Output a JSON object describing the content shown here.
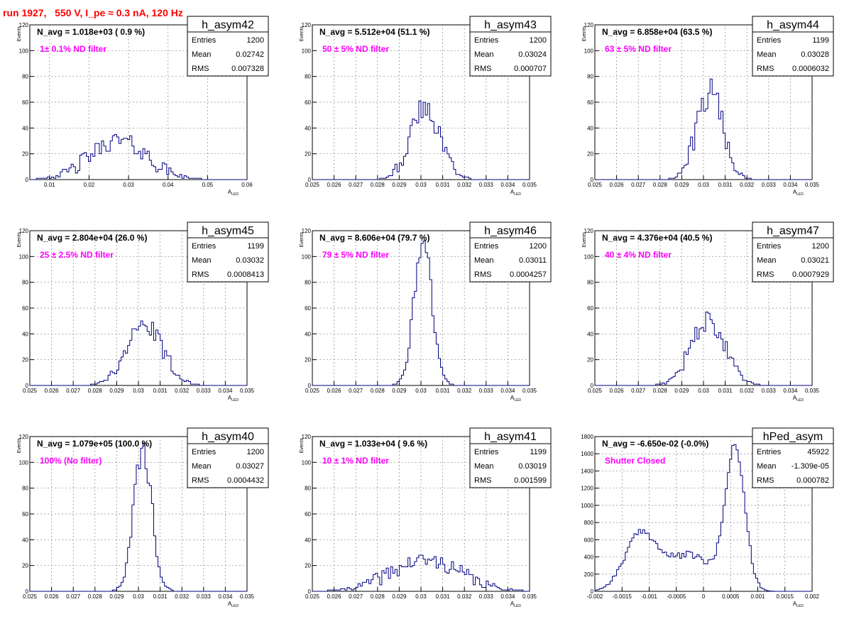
{
  "page_title": "run 1927,   550 V, I_pe ≈ 0.3 nA, 120 Hz",
  "colors": {
    "histogram": "#000080",
    "annotation": "#ff00ff",
    "title": "#ff0000",
    "grid": "#888888"
  },
  "chart_data": [
    {
      "type": "histogram",
      "name": "h_asym42",
      "navg_text": "N_avg = 1.018e+03 ( 0.9 %)",
      "filter_text": "1± 0.1% ND filter",
      "stats": [
        [
          "Entries",
          "1200"
        ],
        [
          "Mean",
          "0.02742"
        ],
        [
          "RMS",
          "0.007328"
        ]
      ],
      "xlabel": "A",
      "xlabel_sub": "LED",
      "ylabel": "Events",
      "xlim": [
        0.005,
        0.06
      ],
      "ylim": [
        0,
        120
      ],
      "xticks": [
        0.01,
        0.02,
        0.03,
        0.04,
        0.05,
        0.06
      ],
      "xticklabels": [
        "0.01",
        "0.02",
        "0.03",
        "0.04",
        "0.05",
        "0.06"
      ],
      "yticks": [
        0,
        20,
        40,
        60,
        80,
        100,
        120
      ],
      "yticklabels": [
        "0",
        "20",
        "40",
        "60",
        "80",
        "100",
        "120"
      ],
      "peaks": [
        [
          0.0274,
          0.0073,
          30
        ]
      ],
      "noise": 7,
      "seed": 42
    },
    {
      "type": "histogram",
      "name": "h_asym43",
      "navg_text": "N_avg = 5.512e+04 (51.1 %)",
      "filter_text": "50 ± 5% ND filter",
      "stats": [
        [
          "Entries",
          "1200"
        ],
        [
          "Mean",
          "0.03024"
        ],
        [
          "RMS",
          "0.000707"
        ]
      ],
      "xlabel": "A",
      "xlabel_sub": "LED",
      "ylabel": "Events",
      "xlim": [
        0.025,
        0.035
      ],
      "ylim": [
        0,
        120
      ],
      "xticks": [
        0.025,
        0.026,
        0.027,
        0.028,
        0.029,
        0.03,
        0.031,
        0.032,
        0.033,
        0.034,
        0.035
      ],
      "xticklabels": [
        "0.025",
        "0.026",
        "0.027",
        "0.028",
        "0.029",
        "0.03",
        "0.031",
        "0.032",
        "0.033",
        "0.034",
        "0.035"
      ],
      "yticks": [
        0,
        20,
        40,
        60,
        80,
        100,
        120
      ],
      "yticklabels": [
        "0",
        "20",
        "40",
        "60",
        "80",
        "100",
        "120"
      ],
      "peaks": [
        [
          0.0302,
          0.0007,
          55
        ]
      ],
      "noise": 10,
      "seed": 43
    },
    {
      "type": "histogram",
      "name": "h_asym44",
      "navg_text": "N_avg = 6.858e+04 (63.5 %)",
      "filter_text": "63 ± 5% ND filter",
      "stats": [
        [
          "Entries",
          "1199"
        ],
        [
          "Mean",
          "0.03028"
        ],
        [
          "RMS",
          "0.0006032"
        ]
      ],
      "xlabel": "A",
      "xlabel_sub": "LED",
      "ylabel": "Events",
      "xlim": [
        0.025,
        0.035
      ],
      "ylim": [
        0,
        120
      ],
      "xticks": [
        0.025,
        0.026,
        0.027,
        0.028,
        0.029,
        0.03,
        0.031,
        0.032,
        0.033,
        0.034,
        0.035
      ],
      "xticklabels": [
        "0.025",
        "0.026",
        "0.027",
        "0.028",
        "0.029",
        "0.03",
        "0.031",
        "0.032",
        "0.033",
        "0.034",
        "0.035"
      ],
      "yticks": [
        0,
        20,
        40,
        60,
        80,
        100,
        120
      ],
      "yticklabels": [
        "0",
        "20",
        "40",
        "60",
        "80",
        "100",
        "120"
      ],
      "peaks": [
        [
          0.0303,
          0.0006,
          68
        ]
      ],
      "noise": 11,
      "seed": 44
    },
    {
      "type": "histogram",
      "name": "h_asym45",
      "navg_text": "N_avg = 2.804e+04 (26.0 %)",
      "filter_text": "25 ± 2.5% ND filter",
      "stats": [
        [
          "Entries",
          "1199"
        ],
        [
          "Mean",
          "0.03032"
        ],
        [
          "RMS",
          "0.0008413"
        ]
      ],
      "xlabel": "A",
      "xlabel_sub": "LED",
      "ylabel": "Events",
      "xlim": [
        0.025,
        0.035
      ],
      "ylim": [
        0,
        120
      ],
      "xticks": [
        0.025,
        0.026,
        0.027,
        0.028,
        0.029,
        0.03,
        0.031,
        0.032,
        0.033,
        0.034,
        0.035
      ],
      "xticklabels": [
        "0.025",
        "0.026",
        "0.027",
        "0.028",
        "0.029",
        "0.03",
        "0.031",
        "0.032",
        "0.033",
        "0.034",
        "0.035"
      ],
      "yticks": [
        0,
        20,
        40,
        60,
        80,
        100,
        120
      ],
      "yticklabels": [
        "0",
        "20",
        "40",
        "60",
        "80",
        "100",
        "120"
      ],
      "peaks": [
        [
          0.0303,
          0.00084,
          46
        ]
      ],
      "noise": 7,
      "seed": 45
    },
    {
      "type": "histogram",
      "name": "h_asym46",
      "navg_text": "N_avg = 8.606e+04 (79.7 %)",
      "filter_text": "79 ± 5% ND filter",
      "stats": [
        [
          "Entries",
          "1200"
        ],
        [
          "Mean",
          "0.03011"
        ],
        [
          "RMS",
          "0.0004257"
        ]
      ],
      "xlabel": "A",
      "xlabel_sub": "LED",
      "ylabel": "Events",
      "xlim": [
        0.025,
        0.035
      ],
      "ylim": [
        0,
        120
      ],
      "xticks": [
        0.025,
        0.026,
        0.027,
        0.028,
        0.029,
        0.03,
        0.031,
        0.032,
        0.033,
        0.034,
        0.035
      ],
      "xticklabels": [
        "0.025",
        "0.026",
        "0.027",
        "0.028",
        "0.029",
        "0.03",
        "0.031",
        "0.032",
        "0.033",
        "0.034",
        "0.035"
      ],
      "yticks": [
        0,
        20,
        40,
        60,
        80,
        100,
        120
      ],
      "yticklabels": [
        "0",
        "20",
        "40",
        "60",
        "80",
        "100",
        "120"
      ],
      "peaks": [
        [
          0.0301,
          0.00042,
          110
        ]
      ],
      "noise": 8,
      "seed": 46
    },
    {
      "type": "histogram",
      "name": "h_asym47",
      "navg_text": "N_avg = 4.376e+04 (40.5 %)",
      "filter_text": "40 ± 4% ND filter",
      "stats": [
        [
          "Entries",
          "1200"
        ],
        [
          "Mean",
          "0.03021"
        ],
        [
          "RMS",
          "0.0007929"
        ]
      ],
      "xlabel": "A",
      "xlabel_sub": "LED",
      "ylabel": "Events",
      "xlim": [
        0.025,
        0.035
      ],
      "ylim": [
        0,
        120
      ],
      "xticks": [
        0.025,
        0.026,
        0.027,
        0.028,
        0.029,
        0.03,
        0.031,
        0.032,
        0.033,
        0.034,
        0.035
      ],
      "xticklabels": [
        "0.025",
        "0.026",
        "0.027",
        "0.028",
        "0.029",
        "0.03",
        "0.031",
        "0.032",
        "0.033",
        "0.034",
        "0.035"
      ],
      "yticks": [
        0,
        20,
        40,
        60,
        80,
        100,
        120
      ],
      "yticklabels": [
        "0",
        "20",
        "40",
        "60",
        "80",
        "100",
        "120"
      ],
      "peaks": [
        [
          0.0302,
          0.00078,
          50
        ]
      ],
      "noise": 7,
      "seed": 47
    },
    {
      "type": "histogram",
      "name": "h_asym40",
      "navg_text": "N_avg = 1.079e+05 (100.0 %)",
      "filter_text": "100% (No filter)",
      "stats": [
        [
          "Entries",
          "1200"
        ],
        [
          "Mean",
          "0.03027"
        ],
        [
          "RMS",
          "0.0004432"
        ]
      ],
      "xlabel": "A",
      "xlabel_sub": "LED",
      "ylabel": "Events",
      "xlim": [
        0.025,
        0.035
      ],
      "ylim": [
        0,
        120
      ],
      "xticks": [
        0.025,
        0.026,
        0.027,
        0.028,
        0.029,
        0.03,
        0.031,
        0.032,
        0.033,
        0.034,
        0.035
      ],
      "xticklabels": [
        "0.025",
        "0.026",
        "0.027",
        "0.028",
        "0.029",
        "0.03",
        "0.031",
        "0.032",
        "0.033",
        "0.034",
        "0.035"
      ],
      "yticks": [
        0,
        20,
        40,
        60,
        80,
        100,
        120
      ],
      "yticklabels": [
        "0",
        "20",
        "40",
        "60",
        "80",
        "100",
        "120"
      ],
      "peaks": [
        [
          0.0302,
          0.00042,
          108
        ]
      ],
      "noise": 9,
      "seed": 40
    },
    {
      "type": "histogram",
      "name": "h_asym41",
      "navg_text": "N_avg = 1.033e+04 ( 9.6 %)",
      "filter_text": "10 ± 1% ND filter",
      "stats": [
        [
          "Entries",
          "1199"
        ],
        [
          "Mean",
          "0.03019"
        ],
        [
          "RMS",
          "0.001599"
        ]
      ],
      "xlabel": "A",
      "xlabel_sub": "LED",
      "ylabel": "Events",
      "xlim": [
        0.025,
        0.035
      ],
      "ylim": [
        0,
        120
      ],
      "xticks": [
        0.025,
        0.026,
        0.027,
        0.028,
        0.029,
        0.03,
        0.031,
        0.032,
        0.033,
        0.034,
        0.035
      ],
      "xticklabels": [
        "0.025",
        "0.026",
        "0.027",
        "0.028",
        "0.029",
        "0.03",
        "0.031",
        "0.032",
        "0.033",
        "0.034",
        "0.035"
      ],
      "yticks": [
        0,
        20,
        40,
        60,
        80,
        100,
        120
      ],
      "yticklabels": [
        "0",
        "20",
        "40",
        "60",
        "80",
        "100",
        "120"
      ],
      "peaks": [
        [
          0.0302,
          0.0016,
          24
        ]
      ],
      "noise": 6,
      "seed": 41
    },
    {
      "type": "histogram",
      "name": "hPed_asym",
      "navg_text": "N_avg = -6.650e-02 (-0.0%)",
      "filter_text": "Shutter Closed",
      "stats": [
        [
          "Entries",
          "45922"
        ],
        [
          "Mean",
          "-1.309e-05"
        ],
        [
          "RMS",
          "0.000782"
        ]
      ],
      "xlabel": "A",
      "xlabel_sub": "LED",
      "ylabel": "",
      "xlim": [
        -0.002,
        0.002
      ],
      "ylim": [
        0,
        1800
      ],
      "xticks": [
        -0.002,
        -0.0015,
        -0.001,
        -0.0005,
        0,
        0.0005,
        0.001,
        0.0015,
        0.002
      ],
      "xticklabels": [
        "-0.002",
        "-0.0015",
        "-0.001",
        "-0.0005",
        "0",
        "0.0005",
        "0.001",
        "0.0015",
        "0.002"
      ],
      "yticks": [
        0,
        200,
        400,
        600,
        800,
        1000,
        1200,
        1400,
        1600,
        1800
      ],
      "yticklabels": [
        "0",
        "200",
        "400",
        "600",
        "800",
        "1000",
        "1200",
        "1400",
        "1600",
        "1800"
      ],
      "peaks": [
        [
          -0.00115,
          0.0003,
          660
        ],
        [
          -0.00025,
          0.0004,
          420
        ],
        [
          0.00058,
          0.00018,
          1650
        ]
      ],
      "noise": 40,
      "seed": 99
    }
  ]
}
